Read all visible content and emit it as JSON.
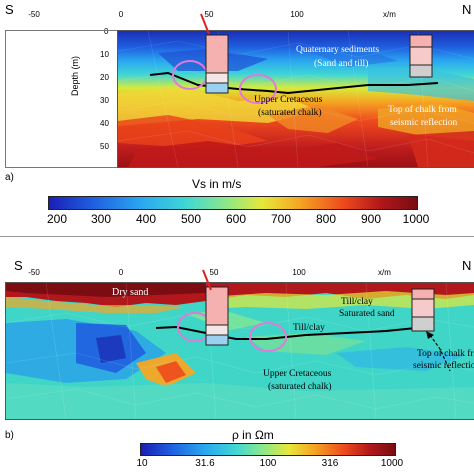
{
  "panel_a": {
    "label": "a)",
    "dir_left": "S",
    "dir_right": "N",
    "x_unit": "x/m",
    "x_ticks": [
      "-50",
      "0",
      "50",
      "100"
    ],
    "y_label": "Depth (m)",
    "y_ticks": [
      "0",
      "10",
      "20",
      "30",
      "40",
      "50"
    ],
    "annotations": {
      "quaternary": "Quaternary sediments",
      "quaternary_sub": "(Sand and till)",
      "upper_cretaceous": "Upper Cretaceous",
      "upper_cretaceous_sub": "(saturated chalk)",
      "top_chalk": "Top of chalk from",
      "top_chalk_sub": "seismic reflection"
    },
    "colorbar": {
      "title": "Vs in m/s",
      "ticks": [
        "200",
        "300",
        "400",
        "500",
        "600",
        "700",
        "800",
        "900",
        "1000"
      ]
    }
  },
  "panel_b": {
    "label": "b)",
    "dir_left": "S",
    "dir_right": "N",
    "x_unit": "x/m",
    "x_ticks": [
      "-50",
      "0",
      "50",
      "100"
    ],
    "annotations": {
      "dry_sand": "Dry sand",
      "till_clay_top": "Till/clay",
      "saturated_sand": "Saturated sand",
      "till_clay_mid": "Till/clay",
      "upper_cretaceous": "Upper Cretaceous",
      "upper_cretaceous_sub": "(saturated chalk)",
      "top_chalk": "Top of chalk fr",
      "top_chalk_sub": "seismic reflectio"
    },
    "colorbar": {
      "title": "ρ in Ωm",
      "ticks": [
        "10",
        "31.6",
        "100",
        "316",
        "1000"
      ]
    }
  },
  "colors": {
    "cmap": [
      "#1a1fb5",
      "#1f5fe0",
      "#2aa7f0",
      "#3fd6d6",
      "#8ce88a",
      "#e6e83a",
      "#f5a623",
      "#ee4a1d",
      "#b2181b",
      "#7a0c12"
    ]
  }
}
